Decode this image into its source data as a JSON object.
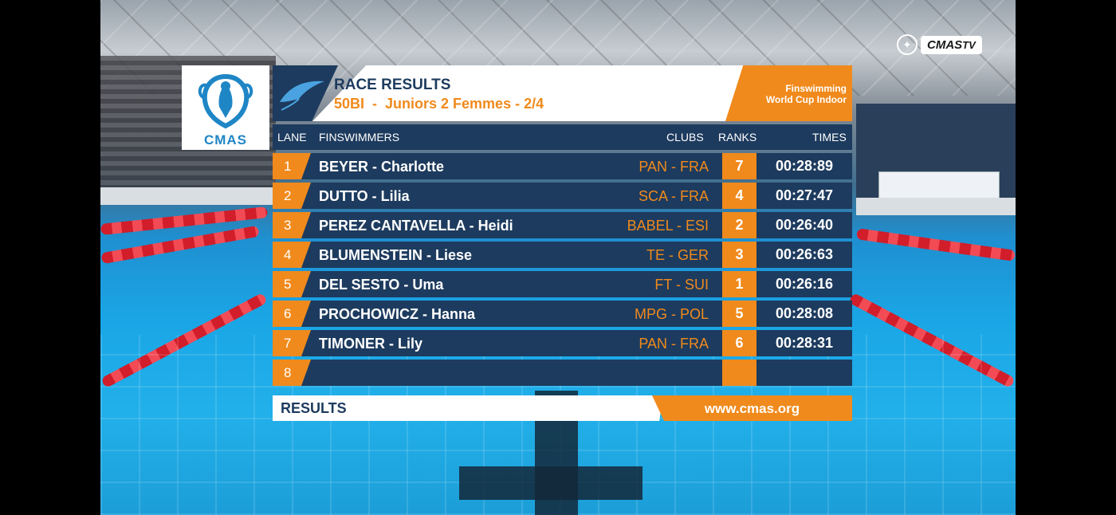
{
  "broadcaster": {
    "badge_label": "CMAS",
    "badge_suffix": "TV",
    "icon": "cmas-tv-emblem-icon"
  },
  "logo": {
    "text": "CMAS",
    "icon": "cmas-emblem-icon"
  },
  "header": {
    "title": "RACE RESULTS",
    "subtitle": "50BI  -  Juniors 2 Femmes - 2/4",
    "event_line1": "Finswimming",
    "event_line2": "World Cup Indoor",
    "icon": "manta-ray-icon"
  },
  "columns": {
    "lane": "LANE",
    "finswimmers": "FINSWIMMERS",
    "clubs": "CLUBS",
    "ranks": "RANKS",
    "times": "TIMES"
  },
  "rows": [
    {
      "lane": "1",
      "name": "BEYER - Charlotte",
      "club": "PAN - FRA",
      "rank": "7",
      "time": "00:28:89"
    },
    {
      "lane": "2",
      "name": "DUTTO - Lilia",
      "club": "SCA - FRA",
      "rank": "4",
      "time": "00:27:47"
    },
    {
      "lane": "3",
      "name": "PEREZ CANTAVELLA - Heidi",
      "club": "BABEL - ESI",
      "rank": "2",
      "time": "00:26:40"
    },
    {
      "lane": "4",
      "name": "BLUMENSTEIN - Liese",
      "club": "TE - GER",
      "rank": "3",
      "time": "00:26:63"
    },
    {
      "lane": "5",
      "name": "DEL SESTO - Uma",
      "club": "FT - SUI",
      "rank": "1",
      "time": "00:26:16"
    },
    {
      "lane": "6",
      "name": "PROCHOWICZ - Hanna",
      "club": "MPG - POL",
      "rank": "5",
      "time": "00:28:08"
    },
    {
      "lane": "7",
      "name": "TIMONER - Lily",
      "club": "PAN - FRA",
      "rank": "6",
      "time": "00:28:31"
    },
    {
      "lane": "8",
      "name": "",
      "club": "",
      "rank": "",
      "time": ""
    }
  ],
  "footer": {
    "label": "RESULTS",
    "url": "www.cmas.org"
  },
  "colors": {
    "navy": "#1d3b5e",
    "orange": "#f08a1c",
    "white": "#ffffff",
    "logo_blue": "#1f86c6"
  }
}
